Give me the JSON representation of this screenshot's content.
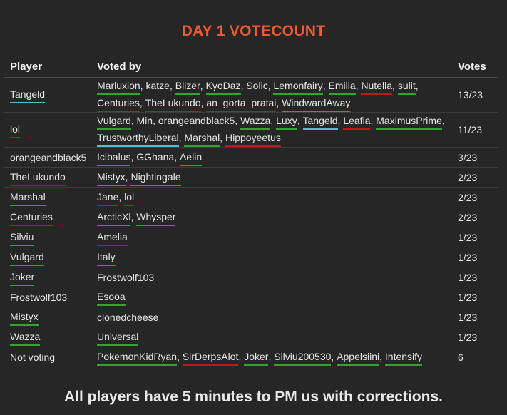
{
  "title": "DAY 1 VOTECOUNT",
  "colors": {
    "title": "#f05a32",
    "background": "#262626",
    "underline_green": "#2ea52e",
    "underline_red": "#c01818",
    "underline_blue": "#4ec2c9"
  },
  "headers": {
    "player": "Player",
    "voted_by": "Voted by",
    "votes": "Votes"
  },
  "rows": [
    {
      "player": "Tangeld",
      "player_mark": "blue",
      "votes": "13/23",
      "tall": true,
      "voters": [
        {
          "n": "Marluxion",
          "m": "green"
        },
        {
          "n": "katze",
          "m": ""
        },
        {
          "n": "Blizer",
          "m": "green"
        },
        {
          "n": "KyoDaz",
          "m": "green"
        },
        {
          "n": "Solic",
          "m": ""
        },
        {
          "n": "Lemonfairy",
          "m": "green"
        },
        {
          "n": "Emilia",
          "m": "green"
        },
        {
          "n": "Nutella",
          "m": "red"
        },
        {
          "n": "sulit",
          "m": "green"
        },
        {
          "n": "Centuries",
          "m": "red"
        },
        {
          "n": "TheLukundo",
          "m": "red"
        },
        {
          "n": "an_gorta_pratai",
          "m": "red"
        },
        {
          "n": "WindwardAway",
          "m": "green"
        }
      ]
    },
    {
      "player": "lol",
      "player_mark": "red",
      "votes": "11/23",
      "tall": true,
      "voters": [
        {
          "n": "Vulgard",
          "m": "green"
        },
        {
          "n": "Min",
          "m": ""
        },
        {
          "n": "orangeandblack5",
          "m": ""
        },
        {
          "n": "Wazza",
          "m": "green"
        },
        {
          "n": "Luxy",
          "m": "green"
        },
        {
          "n": "Tangeld",
          "m": "blue"
        },
        {
          "n": "Leafia",
          "m": "red"
        },
        {
          "n": "MaximusPrime",
          "m": "green"
        },
        {
          "n": "TrustworthyLiberal",
          "m": "blue"
        },
        {
          "n": "Marshal",
          "m": "green"
        },
        {
          "n": "Hippoyeetus",
          "m": "red"
        }
      ]
    },
    {
      "player": "orangeandblack5",
      "player_mark": "",
      "votes": "3/23",
      "voters": [
        {
          "n": "Icibalus",
          "m": "green"
        },
        {
          "n": "GGhana",
          "m": ""
        },
        {
          "n": "Aelin",
          "m": "green"
        }
      ]
    },
    {
      "player": "TheLukundo",
      "player_mark": "red",
      "votes": "2/23",
      "voters": [
        {
          "n": "Mistyx",
          "m": "green"
        },
        {
          "n": "Nightingale",
          "m": "green"
        }
      ]
    },
    {
      "player": "Marshal",
      "player_mark": "green",
      "votes": "2/23",
      "voters": [
        {
          "n": "Jane",
          "m": "red"
        },
        {
          "n": "lol",
          "m": "red"
        }
      ]
    },
    {
      "player": "Centuries",
      "player_mark": "red",
      "votes": "2/23",
      "voters": [
        {
          "n": "ArcticXl",
          "m": "green"
        },
        {
          "n": "Whysper",
          "m": "green"
        }
      ]
    },
    {
      "player": "Silviu",
      "player_mark": "green",
      "votes": "1/23",
      "voters": [
        {
          "n": "Amelia",
          "m": "red"
        }
      ]
    },
    {
      "player": "Vulgard",
      "player_mark": "green",
      "votes": "1/23",
      "voters": [
        {
          "n": "Italy",
          "m": "green"
        }
      ]
    },
    {
      "player": "Joker",
      "player_mark": "green",
      "votes": "1/23",
      "voters": [
        {
          "n": "Frostwolf103",
          "m": ""
        }
      ]
    },
    {
      "player": "Frostwolf103",
      "player_mark": "",
      "votes": "1/23",
      "voters": [
        {
          "n": "Esooa",
          "m": "green"
        }
      ]
    },
    {
      "player": "Mistyx",
      "player_mark": "green",
      "votes": "1/23",
      "voters": [
        {
          "n": "clonedcheese",
          "m": ""
        }
      ]
    },
    {
      "player": "Wazza",
      "player_mark": "green",
      "votes": "1/23",
      "voters": [
        {
          "n": "Universal",
          "m": "green"
        }
      ]
    },
    {
      "player": "Not voting",
      "player_mark": "",
      "votes": "6",
      "voters": [
        {
          "n": "PokemonKidRyan",
          "m": "green"
        },
        {
          "n": "SirDerpsAlot",
          "m": "red"
        },
        {
          "n": "Joker",
          "m": "green"
        },
        {
          "n": "Silviu200530",
          "m": "green"
        },
        {
          "n": "Appelsiini",
          "m": "green"
        },
        {
          "n": "Intensify",
          "m": "green"
        }
      ]
    }
  ],
  "footer": "All players have 5 minutes to PM us with corrections."
}
